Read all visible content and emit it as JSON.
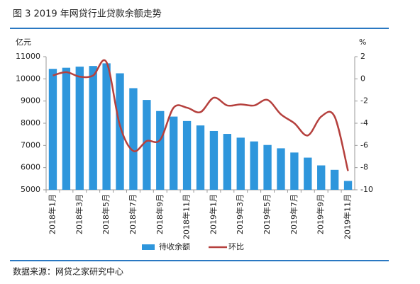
{
  "chart_data": {
    "type": "bar-line",
    "title": "图 3 2019 年网贷行业贷款余额走势",
    "y_label": "亿元",
    "y2_label": "%",
    "source": "数据来源：网贷之家研究中心",
    "categories": [
      "2018年1月",
      null,
      "2018年3月",
      null,
      "2018年5月",
      null,
      "2018年7月",
      null,
      "2018年9月",
      null,
      "2018年11月",
      null,
      "2019年1月",
      null,
      "2019年3月",
      null,
      "2019年5月",
      null,
      "2019年7月",
      null,
      "2019年9月",
      null,
      "2019年11月"
    ],
    "series": [
      {
        "name": "待收余额",
        "type": "bar",
        "color": "#2e96dc",
        "values": [
          10450,
          10500,
          10550,
          10580,
          10700,
          10250,
          9580,
          9050,
          8550,
          8300,
          8100,
          7900,
          7650,
          7520,
          7350,
          7180,
          7020,
          6870,
          6680,
          6450,
          6100,
          5900,
          5400
        ]
      },
      {
        "name": "环比",
        "type": "line",
        "axis": "y2",
        "color": "#b5403d",
        "values": [
          0.3,
          0.6,
          0.2,
          0.3,
          1.5,
          -4.2,
          -6.5,
          -5.6,
          -5.5,
          -2.6,
          -2.6,
          -3.0,
          -1.7,
          -2.4,
          -2.3,
          -2.4,
          -1.9,
          -3.2,
          -4.0,
          -5.1,
          -3.4,
          -3.4,
          -8.3
        ]
      }
    ],
    "ylim": [
      5000,
      11000
    ],
    "yticks": [
      5000,
      6000,
      7000,
      8000,
      9000,
      10000,
      11000
    ],
    "y2lim": [
      -10,
      2
    ],
    "y2ticks": [
      -10,
      -8,
      -6,
      -4,
      -2,
      0,
      2
    ]
  }
}
